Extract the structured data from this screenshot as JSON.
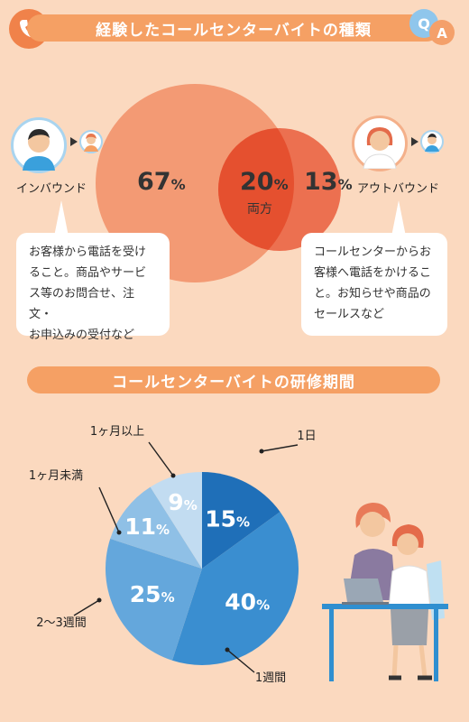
{
  "section1": {
    "title": "経験したコールセンターバイトの種類",
    "inbound": {
      "label": "インバウンド",
      "percent": "67",
      "description": [
        "お客様から電話を受け",
        "ること。商品やサービ",
        "ス等のお問合せ、注文・",
        "お申込みの受付など"
      ]
    },
    "both": {
      "label": "両方",
      "percent": "20"
    },
    "outbound": {
      "label": "アウトバウンド",
      "percent": "13",
      "description": [
        "コールセンターからお",
        "客様へ電話をかけるこ",
        "と。お知らせや商品の",
        "セールスなど"
      ]
    },
    "percent_sign": "%",
    "qa_q": "Q",
    "qa_a": "A"
  },
  "section2": {
    "title": "コールセンターバイトの研修期間"
  },
  "chart_data": {
    "type": "pie",
    "title": "コールセンターバイトの研修期間",
    "slices": [
      {
        "label": "1日",
        "value": 15,
        "color": "#1f6fb8"
      },
      {
        "label": "1週間",
        "value": 40,
        "color": "#3a8ed0"
      },
      {
        "label": "2〜3週間",
        "value": 25,
        "color": "#64a7dc"
      },
      {
        "label": "1ヶ月未満",
        "value": 11,
        "color": "#8fc0e6"
      },
      {
        "label": "1ヶ月以上",
        "value": 9,
        "color": "#c2dcf1"
      }
    ],
    "unit": "%"
  },
  "colors": {
    "background": "#fbd9bf",
    "banner": "#f5a064",
    "venn_big": "#f39a74",
    "venn_small": "#ec6e48",
    "venn_overlap": "#e5502f"
  }
}
